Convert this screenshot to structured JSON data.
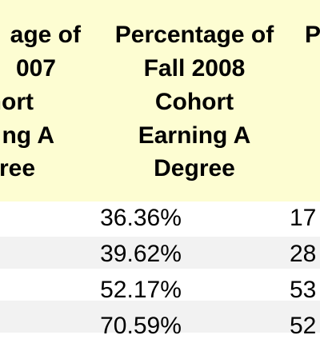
{
  "table": {
    "headers": [
      [
        "age of",
        "007",
        "hort",
        "ng A",
        "ree"
      ],
      [
        "Percentage of",
        "Fall 2008",
        "Cohort",
        "Earning A",
        "Degree"
      ],
      [
        "P"
      ]
    ],
    "rows": [
      [
        "36.36%",
        "17"
      ],
      [
        "39.62%",
        "28"
      ],
      [
        "52.17%",
        "53"
      ],
      [
        "70.59%",
        "52"
      ]
    ]
  }
}
